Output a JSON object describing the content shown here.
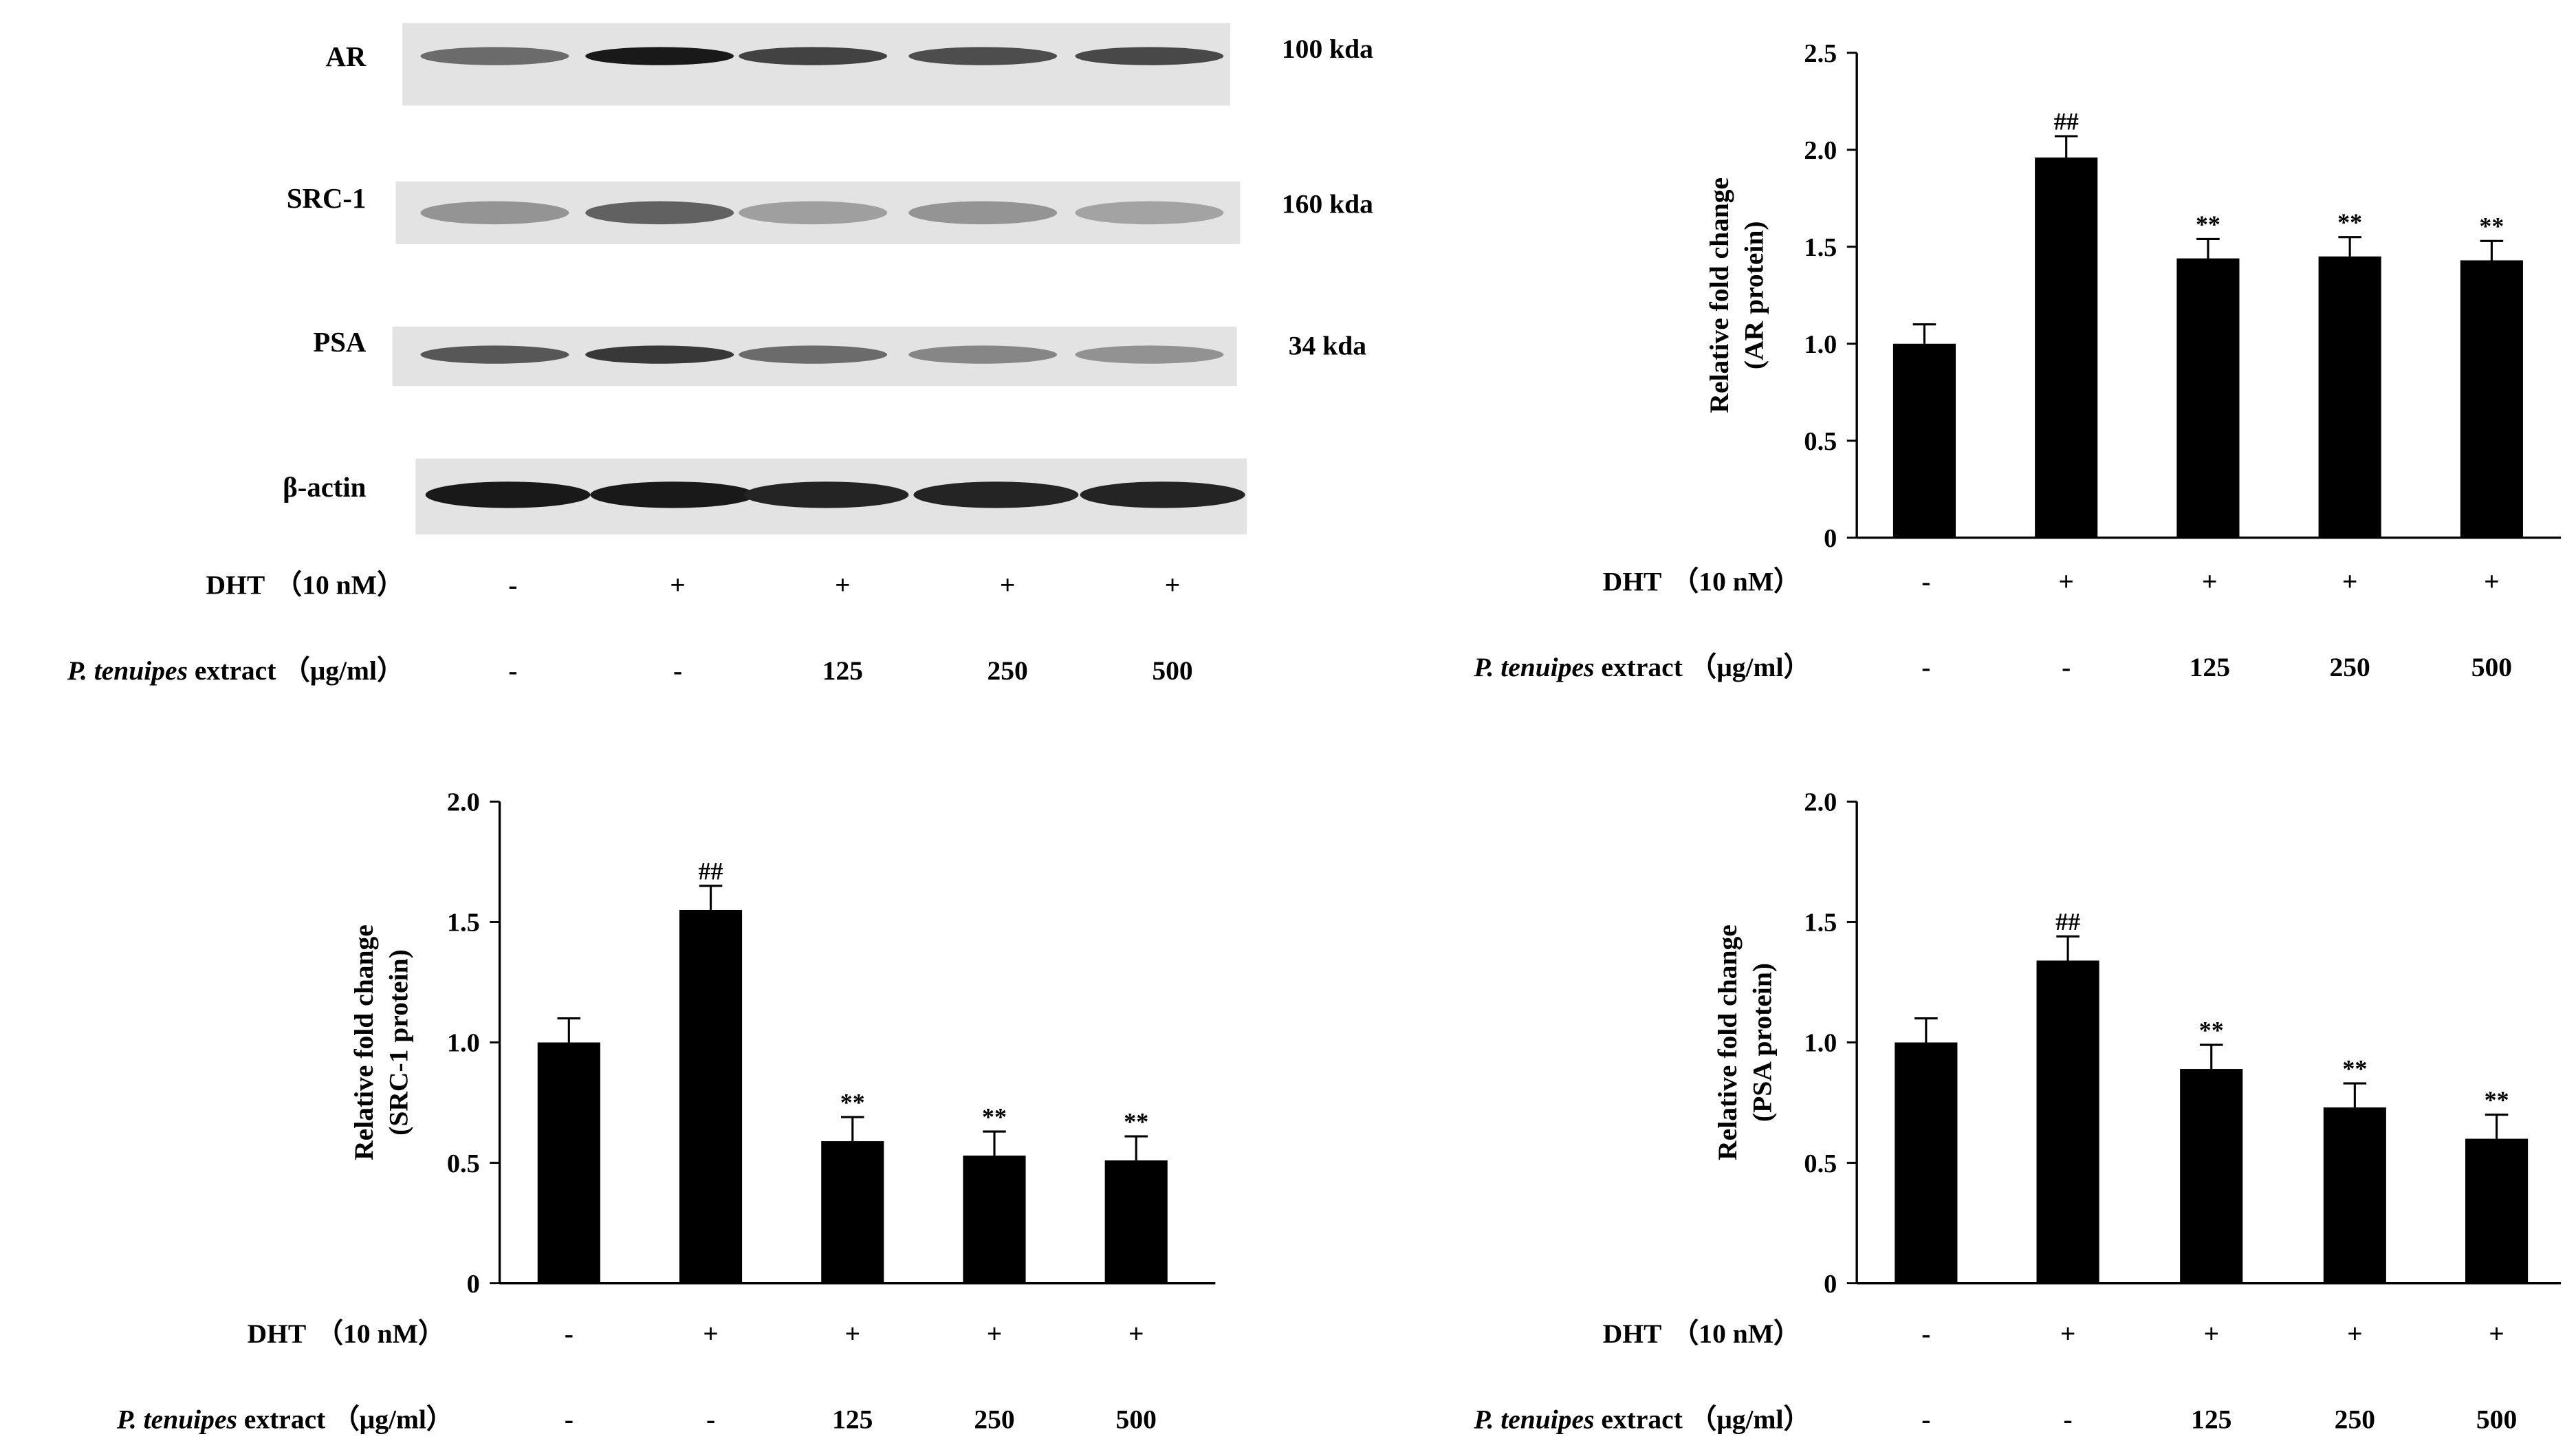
{
  "blot": {
    "rows": [
      {
        "protein": "AR",
        "size": "100 kda"
      },
      {
        "protein": "SRC-1",
        "size": "160 kda"
      },
      {
        "protein": "PSA",
        "size": "34 kda"
      },
      {
        "protein": "β-actin",
        "size": ""
      }
    ],
    "band_intensity": [
      [
        0.55,
        0.95,
        0.75,
        0.7,
        0.72
      ],
      [
        0.35,
        0.6,
        0.3,
        0.35,
        0.28
      ],
      [
        0.65,
        0.8,
        0.55,
        0.42,
        0.36
      ],
      [
        0.95,
        0.95,
        0.9,
        0.9,
        0.9
      ]
    ]
  },
  "treatment": {
    "dht_label_main": "DHT",
    "dht_label_conc": "（10 nM）",
    "extract_label_italic": "P. tenuipes",
    "extract_label_rest": " extract （μg/ml）",
    "dht_values": [
      "-",
      "+",
      "+",
      "+",
      "+"
    ],
    "extract_values": [
      "-",
      "-",
      "125",
      "250",
      "500"
    ]
  },
  "chart_data": [
    {
      "type": "bar",
      "ylabel_line1": "Relative fold change",
      "ylabel_line2": "(AR protein)",
      "ylim": [
        0,
        2.5
      ],
      "yticks": [
        "0",
        "0.5",
        "1.0",
        "1.5",
        "2.0",
        "2.5"
      ],
      "ytick_values": [
        0,
        0.5,
        1.0,
        1.5,
        2.0,
        2.5
      ],
      "values": [
        1.0,
        1.96,
        1.44,
        1.45,
        1.43
      ],
      "errors": [
        0.1,
        0.11,
        0.1,
        0.1,
        0.1
      ],
      "annotations": [
        "",
        "##",
        "**",
        "**",
        "**"
      ],
      "color": "#000000"
    },
    {
      "type": "bar",
      "ylabel_line1": "Relative fold change",
      "ylabel_line2": "(SRC-1 protein)",
      "ylim": [
        0,
        2.0
      ],
      "yticks": [
        "0",
        "0.5",
        "1.0",
        "1.5",
        "2.0"
      ],
      "ytick_values": [
        0,
        0.5,
        1.0,
        1.5,
        2.0
      ],
      "values": [
        1.0,
        1.55,
        0.59,
        0.53,
        0.51
      ],
      "errors": [
        0.1,
        0.1,
        0.1,
        0.1,
        0.1
      ],
      "annotations": [
        "",
        "##",
        "**",
        "**",
        "**"
      ],
      "color": "#000000"
    },
    {
      "type": "bar",
      "ylabel_line1": "Relative fold change",
      "ylabel_line2": "(PSA protein)",
      "ylim": [
        0,
        2.0
      ],
      "yticks": [
        "0",
        "0.5",
        "1.0",
        "1.5",
        "2.0"
      ],
      "ytick_values": [
        0,
        0.5,
        1.0,
        1.5,
        2.0
      ],
      "values": [
        1.0,
        1.34,
        0.89,
        0.73,
        0.6
      ],
      "errors": [
        0.1,
        0.1,
        0.1,
        0.1,
        0.1
      ],
      "annotations": [
        "",
        "##",
        "**",
        "**",
        "**"
      ],
      "color": "#000000"
    }
  ]
}
